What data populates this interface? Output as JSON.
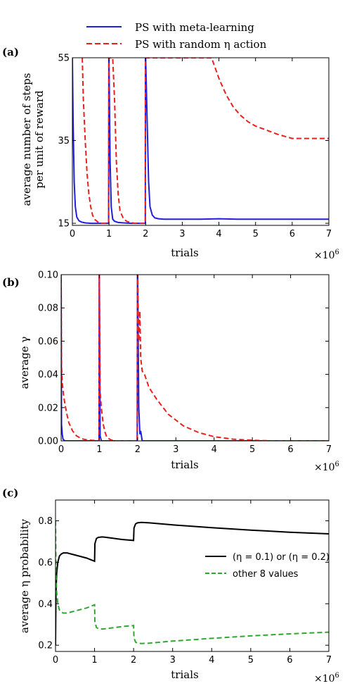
{
  "legend": {
    "entries": [
      {
        "label": "PS with meta-learning",
        "color": "#1f1fdc",
        "style": "solid"
      },
      {
        "label": "PS with random η action",
        "color": "#e8211f",
        "style": "dashed"
      }
    ]
  },
  "chart_data": [
    {
      "panel_label": "(a)",
      "type": "line",
      "xlabel": "trials",
      "ylabel_lines": [
        "average number of steps",
        "per unit of reward"
      ],
      "x_multiplier": "×10",
      "x_multiplier_exp": "6",
      "xlim": [
        0,
        7
      ],
      "ylim": [
        14.5,
        55
      ],
      "xticks": [
        0,
        1,
        2,
        3,
        4,
        5,
        6,
        7
      ],
      "yticks": [
        15,
        35,
        55
      ],
      "x_tick_labels": [
        "0",
        "1",
        "2",
        "3",
        "4",
        "5",
        "6",
        "7"
      ],
      "y_tick_labels": [
        "15",
        "35",
        "55"
      ],
      "series": [
        {
          "color": "#1f1fdc",
          "style": "solid",
          "x": [
            0.0,
            0.02,
            0.05,
            0.08,
            0.12,
            0.18,
            0.25,
            0.35,
            0.5,
            0.7,
            0.9,
            0.99,
            0.995,
            1.0,
            1.03,
            1.06,
            1.1,
            1.15,
            1.25,
            1.4,
            1.6,
            1.8,
            1.99,
            1.995,
            2.0,
            2.04,
            2.08,
            2.12,
            2.18,
            2.25,
            2.35,
            2.5,
            3.0,
            3.5,
            4.0,
            4.5,
            5.0,
            5.5,
            6.0,
            6.5,
            7.0
          ],
          "y": [
            55,
            40,
            25,
            19,
            16.5,
            15.6,
            15.3,
            15.1,
            15.0,
            15.0,
            15.0,
            15.0,
            55,
            55,
            30,
            19,
            16,
            15.5,
            15.2,
            15.1,
            15.0,
            15.0,
            15.0,
            55,
            55,
            40,
            25,
            19,
            17,
            16.3,
            16.1,
            16.0,
            16.0,
            16.0,
            16.1,
            16.0,
            16.0,
            16.0,
            16.0,
            16.0,
            16.0
          ]
        },
        {
          "color": "#e8211f",
          "style": "dashed",
          "x": [
            0.27,
            0.3,
            0.35,
            0.4,
            0.45,
            0.5,
            0.55,
            0.6,
            0.7,
            0.8,
            0.9,
            0.99,
            0.995,
            1.0,
            1.05,
            1.1,
            1.15,
            1.2,
            1.25,
            1.3,
            1.4,
            1.5,
            1.7,
            1.99,
            1.995,
            2.0,
            2.05,
            2.1,
            2.15,
            2.2,
            2.25,
            2.3,
            2.5,
            2.8,
            3.2,
            3.6,
            3.8,
            4.0,
            4.2,
            4.4,
            4.6,
            4.8,
            5.0,
            5.3,
            5.6,
            6.0,
            6.5,
            7.0
          ],
          "y": [
            55,
            45,
            35,
            27,
            22,
            19,
            17,
            16,
            15.3,
            15.0,
            15.0,
            15.0,
            55,
            55,
            55,
            55,
            45,
            30,
            22,
            18,
            16,
            15.4,
            15.0,
            15.0,
            55,
            55,
            55,
            55,
            55,
            55,
            55,
            55,
            55,
            55,
            55,
            55,
            55,
            50,
            46,
            43,
            41,
            39.5,
            38.5,
            37.5,
            36.5,
            35.5,
            35.5,
            35.5
          ]
        }
      ]
    },
    {
      "panel_label": "(b)",
      "type": "line",
      "xlabel": "trials",
      "ylabel": "average γ",
      "x_multiplier": "×10",
      "x_multiplier_exp": "6",
      "xlim": [
        0,
        7
      ],
      "ylim": [
        0,
        0.1
      ],
      "xticks": [
        0,
        1,
        2,
        3,
        4,
        5,
        6,
        7
      ],
      "yticks": [
        0,
        0.02,
        0.04,
        0.06,
        0.08,
        0.1
      ],
      "x_tick_labels": [
        "0",
        "1",
        "2",
        "3",
        "4",
        "5",
        "6",
        "7"
      ],
      "y_tick_labels": [
        "0.00",
        "0.02",
        "0.04",
        "0.06",
        "0.08",
        "0.10"
      ],
      "series": [
        {
          "color": "#1f1fdc",
          "style": "solid",
          "x": [
            0.0,
            0.01,
            0.03,
            0.05,
            0.1,
            0.99,
            0.995,
            1.0,
            1.02,
            1.05,
            1.99,
            1.995,
            2.0,
            2.03,
            2.06,
            2.08,
            2.12,
            2.2,
            7.0
          ],
          "y": [
            0.1,
            0.01,
            0.004,
            0.001,
            0.0,
            0.0,
            0.1,
            0.1,
            0.003,
            0.0,
            0.0,
            0.1,
            0.1,
            0.02,
            0.004,
            0.006,
            0.0,
            0.0,
            0.0
          ]
        },
        {
          "color": "#e8211f",
          "style": "dashed",
          "x": [
            0.0,
            0.01,
            0.03,
            0.06,
            0.1,
            0.15,
            0.2,
            0.3,
            0.4,
            0.55,
            0.7,
            0.99,
            0.995,
            1.0,
            1.02,
            1.05,
            1.1,
            1.15,
            1.2,
            1.3,
            1.4,
            1.99,
            1.995,
            2.0,
            2.03,
            2.06,
            2.08,
            2.12,
            2.18,
            2.3,
            2.5,
            2.8,
            3.2,
            3.6,
            4.0,
            4.5,
            5.0,
            5.5,
            7.0
          ],
          "y": [
            0.1,
            0.045,
            0.035,
            0.028,
            0.022,
            0.016,
            0.011,
            0.006,
            0.003,
            0.0012,
            0.0005,
            0.0,
            0.1,
            0.1,
            0.03,
            0.02,
            0.01,
            0.005,
            0.002,
            0.0006,
            0.0,
            0.0,
            0.1,
            0.1,
            0.06,
            0.078,
            0.05,
            0.042,
            0.04,
            0.032,
            0.025,
            0.016,
            0.009,
            0.005,
            0.0025,
            0.001,
            0.0004,
            0.0,
            0.0
          ]
        }
      ]
    },
    {
      "panel_label": "(c)",
      "type": "line",
      "xlabel": "trials",
      "ylabel": "average η probability",
      "x_multiplier": "×10",
      "x_multiplier_exp": "6",
      "xlim": [
        0,
        7
      ],
      "ylim": [
        0.17,
        0.9
      ],
      "xticks": [
        0,
        1,
        2,
        3,
        4,
        5,
        6,
        7
      ],
      "yticks": [
        0.2,
        0.4,
        0.6,
        0.8
      ],
      "x_tick_labels": [
        "0",
        "1",
        "2",
        "3",
        "4",
        "5",
        "6",
        "7"
      ],
      "y_tick_labels": [
        "0.2",
        "0.4",
        "0.6",
        "0.8"
      ],
      "legend_position": "right",
      "series": [
        {
          "name": "(η = 0.1) or (η = 0.2)",
          "color": "#000000",
          "style": "solid",
          "x": [
            0.0,
            0.01,
            0.03,
            0.06,
            0.1,
            0.15,
            0.2,
            0.3,
            0.4,
            0.6,
            0.8,
            1.0,
            1.01,
            1.05,
            1.1,
            1.2,
            1.3,
            1.5,
            1.7,
            2.0,
            2.01,
            2.05,
            2.1,
            2.2,
            2.4,
            3.0,
            4.0,
            5.0,
            6.0,
            7.0
          ],
          "y": [
            0.2,
            0.45,
            0.55,
            0.6,
            0.63,
            0.64,
            0.645,
            0.645,
            0.64,
            0.63,
            0.62,
            0.605,
            0.69,
            0.715,
            0.72,
            0.722,
            0.72,
            0.715,
            0.71,
            0.705,
            0.765,
            0.785,
            0.79,
            0.792,
            0.79,
            0.78,
            0.767,
            0.755,
            0.745,
            0.737
          ]
        },
        {
          "name": "other 8 values",
          "color": "#2ea82e",
          "style": "dashed",
          "x": [
            0.0,
            0.01,
            0.03,
            0.06,
            0.1,
            0.15,
            0.2,
            0.3,
            0.4,
            0.6,
            0.8,
            1.0,
            1.01,
            1.05,
            1.1,
            1.2,
            1.3,
            1.5,
            1.7,
            2.0,
            2.01,
            2.05,
            2.1,
            2.2,
            2.4,
            3.0,
            4.0,
            5.0,
            6.0,
            7.0
          ],
          "y": [
            0.8,
            0.55,
            0.45,
            0.4,
            0.37,
            0.36,
            0.355,
            0.355,
            0.36,
            0.37,
            0.38,
            0.395,
            0.31,
            0.285,
            0.28,
            0.278,
            0.28,
            0.285,
            0.29,
            0.295,
            0.235,
            0.215,
            0.21,
            0.208,
            0.21,
            0.22,
            0.233,
            0.245,
            0.255,
            0.263
          ]
        }
      ]
    }
  ]
}
